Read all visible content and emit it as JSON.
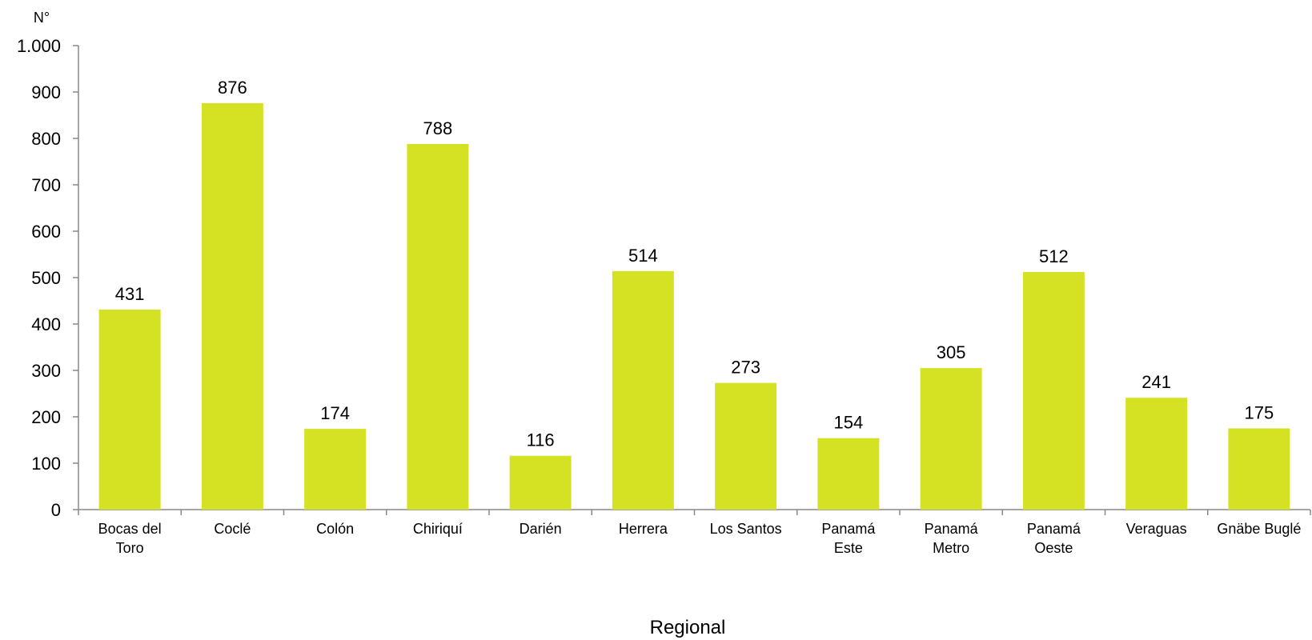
{
  "chart_data": {
    "type": "bar",
    "ylabel": "N°",
    "xlabel": "Regional",
    "ylim": [
      0,
      1000
    ],
    "yticks": [
      0,
      100,
      200,
      300,
      400,
      500,
      600,
      700,
      800,
      900,
      1000
    ],
    "ytick_labels": [
      "0",
      "100",
      "200",
      "300",
      "400",
      "500",
      "600",
      "700",
      "800",
      "900",
      "1.000"
    ],
    "categories": [
      "Bocas del Toro",
      "Coclé",
      "Colón",
      "Chiriquí",
      "Darién",
      "Herrera",
      "Los Santos",
      "Panamá Este",
      "Panamá Metro",
      "Panamá Oeste",
      "Veraguas",
      "Gnäbe Buglé"
    ],
    "category_lines": [
      [
        "Bocas del",
        "Toro"
      ],
      [
        "Coclé"
      ],
      [
        "Colón"
      ],
      [
        "Chiriquí"
      ],
      [
        "Darién"
      ],
      [
        "Herrera"
      ],
      [
        "Los Santos"
      ],
      [
        "Panamá",
        "Este"
      ],
      [
        "Panamá",
        "Metro"
      ],
      [
        "Panamá",
        "Oeste"
      ],
      [
        "Veraguas"
      ],
      [
        "Gnäbe Buglé"
      ]
    ],
    "values": [
      431,
      876,
      174,
      788,
      116,
      514,
      273,
      154,
      305,
      512,
      241,
      175
    ],
    "grid": false,
    "legend": "none",
    "bar_color": "#d4e223",
    "axis_color": "#888888"
  }
}
